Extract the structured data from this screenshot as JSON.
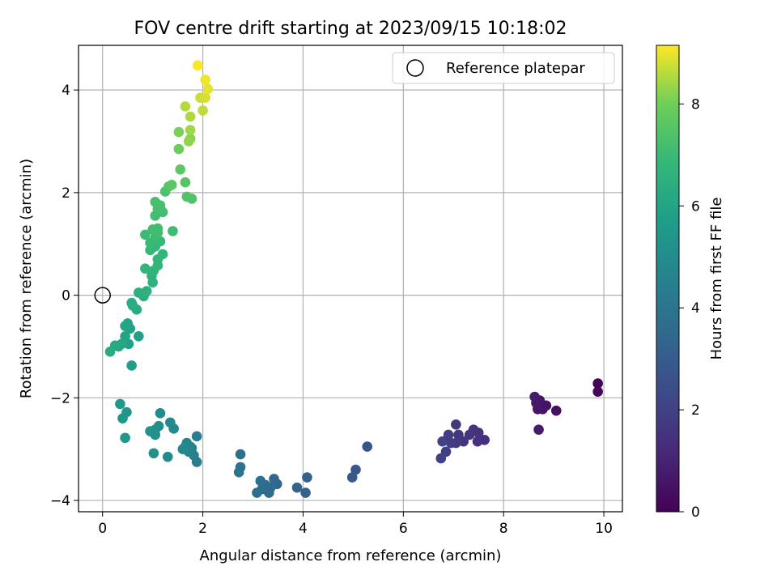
{
  "chart_data": {
    "type": "scatter",
    "title": "FOV centre drift starting at 2023/09/15 10:18:02",
    "xlabel": "Angular distance from reference (arcmin)",
    "ylabel": "Rotation from reference (arcmin)",
    "xlim": [
      -0.48,
      10.37
    ],
    "ylim": [
      -4.22,
      4.87
    ],
    "xticks": [
      0,
      2,
      4,
      6,
      8,
      10
    ],
    "yticks": [
      -4,
      -2,
      0,
      2,
      4
    ],
    "grid": true,
    "legend": {
      "location": "upper right",
      "entries": [
        "Reference platepar"
      ]
    },
    "reference_point": {
      "x": 0,
      "y": 0
    },
    "colorbar": {
      "label": "Hours from first FF file",
      "ticks": [
        0,
        2,
        4,
        6,
        8
      ],
      "range": [
        0,
        9.15
      ],
      "colormap": "viridis"
    },
    "points": [
      [
        9.88,
        -1.72,
        0.1
      ],
      [
        9.88,
        -1.88,
        0.2
      ],
      [
        9.05,
        -2.25,
        0.4
      ],
      [
        8.85,
        -2.15,
        0.5
      ],
      [
        8.78,
        -2.22,
        0.55
      ],
      [
        8.72,
        -2.05,
        0.6
      ],
      [
        8.68,
        -2.22,
        0.65
      ],
      [
        8.65,
        -2.1,
        0.7
      ],
      [
        8.62,
        -1.98,
        0.75
      ],
      [
        8.7,
        -2.62,
        0.8
      ],
      [
        7.62,
        -2.82,
        1.4
      ],
      [
        7.48,
        -2.85,
        1.45
      ],
      [
        7.5,
        -2.68,
        1.5
      ],
      [
        7.4,
        -2.62,
        1.55
      ],
      [
        7.32,
        -2.72,
        1.6
      ],
      [
        7.2,
        -2.85,
        1.65
      ],
      [
        7.1,
        -2.72,
        1.7
      ],
      [
        7.05,
        -2.52,
        1.75
      ],
      [
        7.05,
        -2.88,
        1.8
      ],
      [
        6.95,
        -2.88,
        1.85
      ],
      [
        6.9,
        -2.72,
        1.9
      ],
      [
        6.85,
        -3.05,
        1.95
      ],
      [
        6.78,
        -2.85,
        2.0
      ],
      [
        6.75,
        -3.18,
        2.05
      ],
      [
        5.28,
        -2.95,
        2.7
      ],
      [
        5.05,
        -3.4,
        2.8
      ],
      [
        4.98,
        -3.55,
        2.9
      ],
      [
        4.08,
        -3.55,
        3.2
      ],
      [
        4.05,
        -3.85,
        3.25
      ],
      [
        3.88,
        -3.75,
        3.3
      ],
      [
        3.48,
        -3.68,
        3.4
      ],
      [
        3.42,
        -3.58,
        3.45
      ],
      [
        3.35,
        -3.75,
        3.5
      ],
      [
        3.32,
        -3.85,
        3.55
      ],
      [
        3.25,
        -3.7,
        3.6
      ],
      [
        3.18,
        -3.78,
        3.65
      ],
      [
        3.15,
        -3.62,
        3.7
      ],
      [
        3.08,
        -3.85,
        3.75
      ],
      [
        2.75,
        -3.1,
        3.8
      ],
      [
        2.75,
        -3.35,
        3.85
      ],
      [
        2.72,
        -3.45,
        3.9
      ],
      [
        1.88,
        -2.75,
        4.4
      ],
      [
        1.88,
        -3.25,
        4.45
      ],
      [
        1.82,
        -3.12,
        4.5
      ],
      [
        1.78,
        -2.98,
        4.55
      ],
      [
        1.75,
        -2.95,
        4.6
      ],
      [
        1.72,
        -3.05,
        4.65
      ],
      [
        1.68,
        -2.88,
        4.7
      ],
      [
        1.65,
        -2.95,
        4.75
      ],
      [
        1.6,
        -3.0,
        4.8
      ],
      [
        1.42,
        -2.6,
        4.85
      ],
      [
        1.35,
        -2.48,
        4.9
      ],
      [
        1.3,
        -3.15,
        4.95
      ],
      [
        1.15,
        -2.3,
        5.0
      ],
      [
        1.12,
        -2.55,
        5.05
      ],
      [
        1.05,
        -2.62,
        5.1
      ],
      [
        1.05,
        -2.72,
        5.15
      ],
      [
        1.02,
        -3.08,
        5.2
      ],
      [
        0.95,
        -2.65,
        5.25
      ],
      [
        0.48,
        -2.28,
        5.35
      ],
      [
        0.45,
        -2.78,
        5.4
      ],
      [
        0.4,
        -2.4,
        5.45
      ],
      [
        0.35,
        -2.12,
        5.5
      ],
      [
        0.58,
        -1.37,
        5.7
      ],
      [
        0.72,
        -0.8,
        5.8
      ],
      [
        0.52,
        -0.95,
        5.85
      ],
      [
        0.55,
        -0.65,
        5.9
      ],
      [
        0.45,
        -0.8,
        5.95
      ],
      [
        0.5,
        -0.55,
        6.0
      ],
      [
        0.45,
        -0.6,
        6.05
      ],
      [
        0.38,
        -0.95,
        6.1
      ],
      [
        0.32,
        -1.0,
        6.15
      ],
      [
        0.25,
        -0.98,
        6.2
      ],
      [
        0.15,
        -1.1,
        6.25
      ],
      [
        0.68,
        -0.28,
        6.3
      ],
      [
        0.6,
        -0.2,
        6.35
      ],
      [
        0.58,
        -0.15,
        6.4
      ],
      [
        0.82,
        -0.02,
        6.45
      ],
      [
        0.72,
        0.05,
        6.5
      ],
      [
        0.88,
        0.08,
        6.55
      ],
      [
        1.0,
        0.25,
        6.6
      ],
      [
        0.98,
        0.38,
        6.65
      ],
      [
        1.02,
        0.48,
        6.68
      ],
      [
        0.85,
        0.52,
        6.72
      ],
      [
        1.1,
        0.58,
        6.75
      ],
      [
        1.1,
        0.7,
        6.78
      ],
      [
        1.2,
        0.8,
        6.82
      ],
      [
        0.95,
        0.88,
        6.85
      ],
      [
        1.05,
        0.95,
        6.88
      ],
      [
        1.15,
        1.05,
        6.92
      ],
      [
        0.95,
        1.02,
        6.95
      ],
      [
        1.05,
        1.12,
        6.98
      ],
      [
        0.85,
        1.18,
        7.02
      ],
      [
        1.1,
        1.22,
        7.05
      ],
      [
        1.4,
        1.25,
        7.08
      ],
      [
        1.0,
        1.28,
        7.1
      ],
      [
        1.1,
        1.3,
        7.12
      ],
      [
        1.2,
        1.62,
        7.15
      ],
      [
        1.05,
        1.55,
        7.18
      ],
      [
        1.1,
        1.68,
        7.2
      ],
      [
        1.15,
        1.75,
        7.22
      ],
      [
        1.05,
        1.82,
        7.25
      ],
      [
        1.25,
        2.02,
        7.35
      ],
      [
        1.78,
        1.88,
        7.4
      ],
      [
        1.68,
        1.92,
        7.45
      ],
      [
        1.65,
        2.2,
        7.5
      ],
      [
        1.32,
        2.12,
        7.55
      ],
      [
        1.38,
        2.15,
        7.6
      ],
      [
        1.55,
        2.45,
        7.65
      ],
      [
        1.52,
        2.85,
        7.95
      ],
      [
        1.52,
        3.18,
        8.1
      ],
      [
        1.75,
        3.05,
        8.2
      ],
      [
        1.72,
        3.0,
        8.3
      ],
      [
        1.75,
        3.22,
        8.4
      ],
      [
        1.75,
        3.48,
        8.5
      ],
      [
        1.65,
        3.68,
        8.55
      ],
      [
        2.0,
        3.6,
        8.65
      ],
      [
        1.95,
        3.85,
        8.75
      ],
      [
        2.05,
        3.85,
        8.85
      ],
      [
        2.1,
        4.02,
        8.95
      ],
      [
        2.05,
        4.2,
        9.05
      ],
      [
        1.9,
        4.48,
        9.12
      ]
    ]
  }
}
